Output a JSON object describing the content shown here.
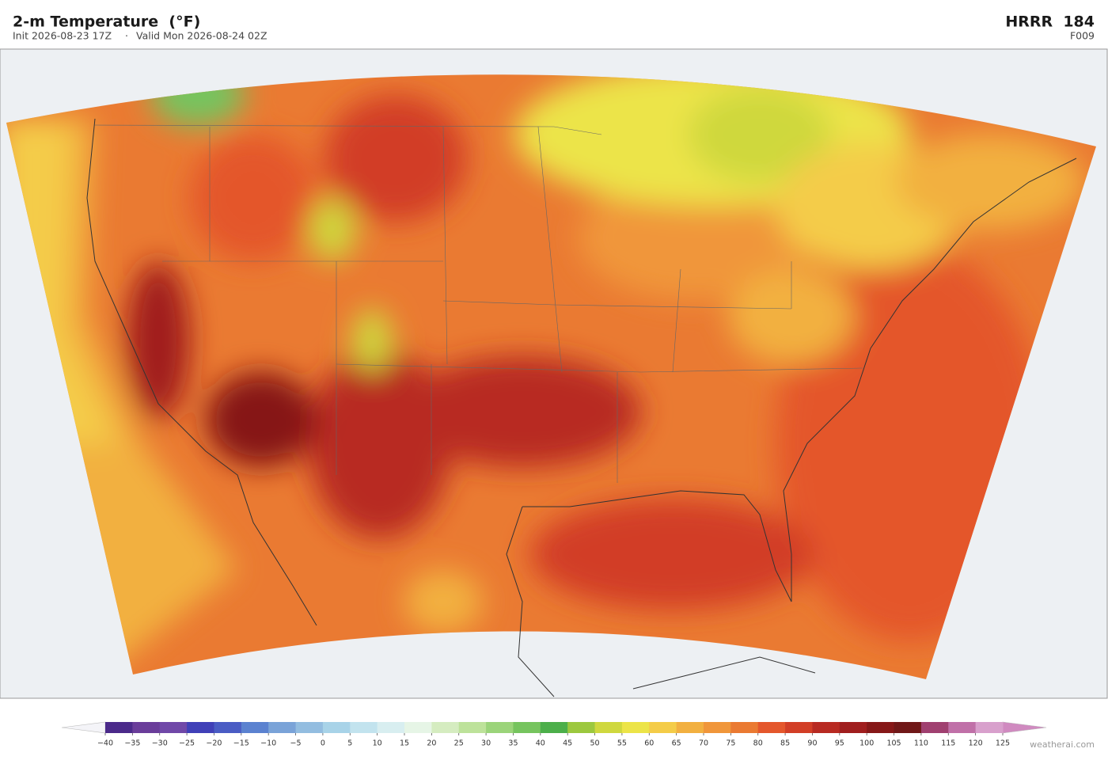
{
  "header": {
    "title": "2-m Temperature  (°F)",
    "init": "Init 2026-08-23 17Z",
    "valid": "Valid Mon 2026-08-24 02Z",
    "model": "HRRR  184",
    "forecast_hour": "F009"
  },
  "colorbar": {
    "under_color": "#f4f4f8",
    "over_color": "#d08ac0",
    "colors": [
      "#4b2a8a",
      "#6a3d9a",
      "#7048a8",
      "#4040b8",
      "#4a5cc4",
      "#5b82d0",
      "#7aa3d8",
      "#93bde0",
      "#a8d3e8",
      "#c2e3ee",
      "#d8eef0",
      "#e6f5e6",
      "#d5ecc0",
      "#bde29a",
      "#9bd47a",
      "#76c45e",
      "#4caf4a",
      "#9cc83e",
      "#cfd83e",
      "#ece448",
      "#f4cc48",
      "#f2b040",
      "#f0963a",
      "#ea7a32",
      "#e4572c",
      "#d23e26",
      "#b82a22",
      "#a01e1e",
      "#861818",
      "#701818",
      "#a04070",
      "#c070a8",
      "#d8a0cc"
    ],
    "ticks": [
      {
        "value": -40,
        "label": "−40"
      },
      {
        "value": -35,
        "label": "−35"
      },
      {
        "value": -30,
        "label": "−30"
      },
      {
        "value": -25,
        "label": "−25"
      },
      {
        "value": -20,
        "label": "−20"
      },
      {
        "value": -15,
        "label": "−15"
      },
      {
        "value": -10,
        "label": "−10"
      },
      {
        "value": -5,
        "label": "−5"
      },
      0,
      5,
      10,
      15,
      20,
      25,
      30,
      35,
      40,
      45,
      50,
      55,
      60,
      65,
      70,
      75,
      80,
      85,
      90,
      95,
      100,
      105,
      110,
      115,
      120,
      125
    ]
  },
  "watermark": "weatherai.com"
}
